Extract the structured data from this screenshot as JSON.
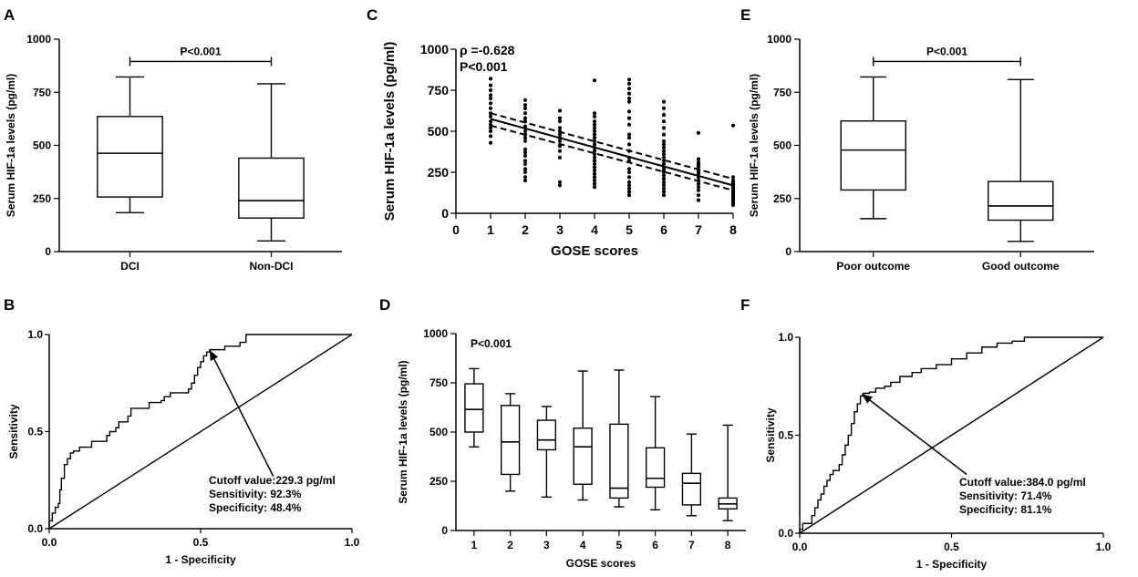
{
  "panels": {
    "A": {
      "label": "A"
    },
    "B": {
      "label": "B"
    },
    "C": {
      "label": "C"
    },
    "D": {
      "label": "D"
    },
    "E": {
      "label": "E"
    },
    "F": {
      "label": "F"
    }
  },
  "chart_data": [
    {
      "id": "A",
      "type": "box",
      "ylabel": "Serum HIF-1a levels (pg/ml)",
      "yticks": [
        0,
        250,
        500,
        750,
        1000
      ],
      "ylim": [
        0,
        1000
      ],
      "categories": [
        "DCI",
        "Non-DCI"
      ],
      "boxes": [
        {
          "min": 183,
          "q1": 257,
          "median": 463,
          "q3": 636,
          "max": 822
        },
        {
          "min": 50,
          "q1": 158,
          "median": 240,
          "q3": 440,
          "max": 790
        }
      ],
      "significance": "P<0.001"
    },
    {
      "id": "B",
      "type": "line",
      "subtype": "roc",
      "xlabel": "1 - Specificity",
      "ylabel": "Sensitivity",
      "xticks": [
        "0.0",
        "0.5",
        "1.0"
      ],
      "yticks": [
        "0.0",
        "0.5",
        "1.0"
      ],
      "xlim": [
        0,
        1
      ],
      "ylim": [
        0,
        1
      ],
      "curve": [
        [
          0,
          0
        ],
        [
          0,
          0.04
        ],
        [
          0.01,
          0.08
        ],
        [
          0.02,
          0.11
        ],
        [
          0.03,
          0.13
        ],
        [
          0.035,
          0.2
        ],
        [
          0.04,
          0.26
        ],
        [
          0.05,
          0.33
        ],
        [
          0.06,
          0.36
        ],
        [
          0.07,
          0.39
        ],
        [
          0.08,
          0.4
        ],
        [
          0.1,
          0.42
        ],
        [
          0.13,
          0.42
        ],
        [
          0.14,
          0.45
        ],
        [
          0.18,
          0.45
        ],
        [
          0.19,
          0.48
        ],
        [
          0.2,
          0.5
        ],
        [
          0.22,
          0.52
        ],
        [
          0.23,
          0.55
        ],
        [
          0.26,
          0.58
        ],
        [
          0.27,
          0.62
        ],
        [
          0.32,
          0.62
        ],
        [
          0.33,
          0.65
        ],
        [
          0.37,
          0.66
        ],
        [
          0.38,
          0.68
        ],
        [
          0.4,
          0.7
        ],
        [
          0.45,
          0.7
        ],
        [
          0.46,
          0.72
        ],
        [
          0.47,
          0.75
        ],
        [
          0.48,
          0.79
        ],
        [
          0.49,
          0.83
        ],
        [
          0.5,
          0.86
        ],
        [
          0.51,
          0.89
        ],
        [
          0.52,
          0.91
        ],
        [
          0.53,
          0.922
        ],
        [
          0.57,
          0.922
        ],
        [
          0.58,
          0.94
        ],
        [
          0.62,
          0.94
        ],
        [
          0.63,
          0.96
        ],
        [
          0.65,
          1.0
        ],
        [
          1.0,
          1.0
        ]
      ],
      "reference_line": [
        [
          0,
          0
        ],
        [
          1,
          1
        ]
      ],
      "arrow": {
        "from": [
          0.74,
          0.27
        ],
        "to": [
          0.53,
          0.92
        ]
      },
      "annotation": [
        "Cutoff value:229.3 pg/ml",
        "Sensitivity: 92.3%",
        "Specificity: 48.4%"
      ]
    },
    {
      "id": "C",
      "type": "scatter",
      "xlabel": "GOSE scores",
      "ylabel": "Serum HIF-1a levels (pg/ml)",
      "xticks": [
        0,
        1,
        2,
        3,
        4,
        5,
        6,
        7,
        8
      ],
      "yticks": [
        0,
        250,
        500,
        750,
        1000
      ],
      "xlim": [
        0,
        8
      ],
      "ylim": [
        0,
        1000
      ],
      "points": {
        "1": [
          820,
          780,
          750,
          720,
          700,
          670,
          640,
          610,
          590,
          560,
          540,
          520,
          500,
          470,
          430
        ],
        "2": [
          690,
          660,
          640,
          610,
          580,
          560,
          530,
          500,
          480,
          460,
          440,
          390,
          370,
          350,
          320,
          300,
          270,
          250,
          220,
          200
        ],
        "3": [
          625,
          580,
          560,
          520,
          500,
          480,
          460,
          440,
          410,
          380,
          340,
          190,
          170
        ],
        "4": [
          810,
          610,
          590,
          560,
          540,
          520,
          500,
          480,
          460,
          440,
          420,
          400,
          380,
          360,
          340,
          320,
          300,
          280,
          260,
          240,
          220,
          200,
          180,
          160
        ],
        "5": [
          815,
          790,
          760,
          730,
          700,
          680,
          620,
          580,
          540,
          480,
          460,
          420,
          380,
          340,
          320,
          270,
          250,
          220,
          190,
          170,
          150,
          130,
          110
        ],
        "6": [
          680,
          640,
          600,
          560,
          520,
          480,
          440,
          420,
          400,
          380,
          360,
          340,
          320,
          300,
          280,
          265,
          250,
          230,
          210,
          190,
          170,
          150,
          130,
          110
        ],
        "7": [
          490,
          330,
          310,
          300,
          290,
          280,
          260,
          250,
          240,
          220,
          200,
          180,
          160,
          140,
          110,
          80
        ],
        "8": [
          535,
          220,
          200,
          190,
          180,
          170,
          160,
          150,
          140,
          130,
          120,
          110,
          100,
          90,
          80,
          70,
          60,
          50
        ]
      },
      "regression": {
        "x": [
          1,
          8
        ],
        "y": [
          575,
          170
        ]
      },
      "ci_upper": {
        "x": [
          1,
          8
        ],
        "y": [
          610,
          210
        ]
      },
      "ci_lower": {
        "x": [
          1,
          8
        ],
        "y": [
          535,
          140
        ]
      },
      "rho": "ρ =-0.628",
      "pvalue": "P<0.001"
    },
    {
      "id": "D",
      "type": "box",
      "xlabel": "GOSE scores",
      "ylabel": "Serum HIF-1a levels (pg/ml)",
      "yticks": [
        0,
        250,
        500,
        750,
        1000
      ],
      "ylim": [
        0,
        1000
      ],
      "categories": [
        "1",
        "2",
        "3",
        "4",
        "5",
        "6",
        "7",
        "8"
      ],
      "boxes": [
        {
          "min": 425,
          "q1": 500,
          "median": 615,
          "q3": 745,
          "max": 822
        },
        {
          "min": 200,
          "q1": 285,
          "median": 450,
          "q3": 635,
          "max": 695
        },
        {
          "min": 170,
          "q1": 410,
          "median": 460,
          "q3": 560,
          "max": 630
        },
        {
          "min": 155,
          "q1": 235,
          "median": 425,
          "q3": 520,
          "max": 810
        },
        {
          "min": 120,
          "q1": 165,
          "median": 215,
          "q3": 540,
          "max": 815
        },
        {
          "min": 105,
          "q1": 220,
          "median": 265,
          "q3": 420,
          "max": 680
        },
        {
          "min": 75,
          "q1": 130,
          "median": 240,
          "q3": 290,
          "max": 490
        },
        {
          "min": 50,
          "q1": 110,
          "median": 135,
          "q3": 165,
          "max": 535
        }
      ],
      "significance": "P<0.001"
    },
    {
      "id": "E",
      "type": "box",
      "ylabel": "Serum HIF-1a levels (pg/ml)",
      "yticks": [
        0,
        250,
        500,
        750,
        1000
      ],
      "ylim": [
        0,
        1000
      ],
      "categories": [
        "Poor outcome",
        "Good outcome"
      ],
      "boxes": [
        {
          "min": 155,
          "q1": 290,
          "median": 478,
          "q3": 615,
          "max": 822
        },
        {
          "min": 48,
          "q1": 148,
          "median": 215,
          "q3": 330,
          "max": 810
        }
      ],
      "significance": "P<0.001"
    },
    {
      "id": "F",
      "type": "line",
      "subtype": "roc",
      "xlabel": "1 - Specificity",
      "ylabel": "Sensitivity",
      "xticks": [
        "0.0",
        "0.5",
        "1.0"
      ],
      "yticks": [
        "0.0",
        "0.5",
        "1.0"
      ],
      "xlim": [
        0,
        1
      ],
      "ylim": [
        0,
        1
      ],
      "curve": [
        [
          0,
          0
        ],
        [
          0,
          0.02
        ],
        [
          0.01,
          0.05
        ],
        [
          0.03,
          0.05
        ],
        [
          0.04,
          0.09
        ],
        [
          0.05,
          0.13
        ],
        [
          0.06,
          0.17
        ],
        [
          0.07,
          0.2
        ],
        [
          0.08,
          0.24
        ],
        [
          0.09,
          0.27
        ],
        [
          0.1,
          0.3
        ],
        [
          0.11,
          0.32
        ],
        [
          0.13,
          0.35
        ],
        [
          0.14,
          0.4
        ],
        [
          0.15,
          0.45
        ],
        [
          0.16,
          0.5
        ],
        [
          0.17,
          0.56
        ],
        [
          0.18,
          0.62
        ],
        [
          0.19,
          0.66
        ],
        [
          0.2,
          0.7
        ],
        [
          0.21,
          0.714
        ],
        [
          0.23,
          0.72
        ],
        [
          0.25,
          0.74
        ],
        [
          0.28,
          0.75
        ],
        [
          0.3,
          0.77
        ],
        [
          0.33,
          0.8
        ],
        [
          0.37,
          0.82
        ],
        [
          0.4,
          0.84
        ],
        [
          0.45,
          0.86
        ],
        [
          0.5,
          0.89
        ],
        [
          0.55,
          0.92
        ],
        [
          0.6,
          0.95
        ],
        [
          0.65,
          0.97
        ],
        [
          0.7,
          0.98
        ],
        [
          0.74,
          1.0
        ],
        [
          1.0,
          1.0
        ]
      ],
      "reference_line": [
        [
          0,
          0
        ],
        [
          1,
          1
        ]
      ],
      "arrow": {
        "from": [
          0.55,
          0.3
        ],
        "to": [
          0.205,
          0.71
        ]
      },
      "annotation": [
        "Cutoff value:384.0 pg/ml",
        "Sensitivity: 71.4%",
        "Specificity: 81.1%"
      ]
    }
  ]
}
